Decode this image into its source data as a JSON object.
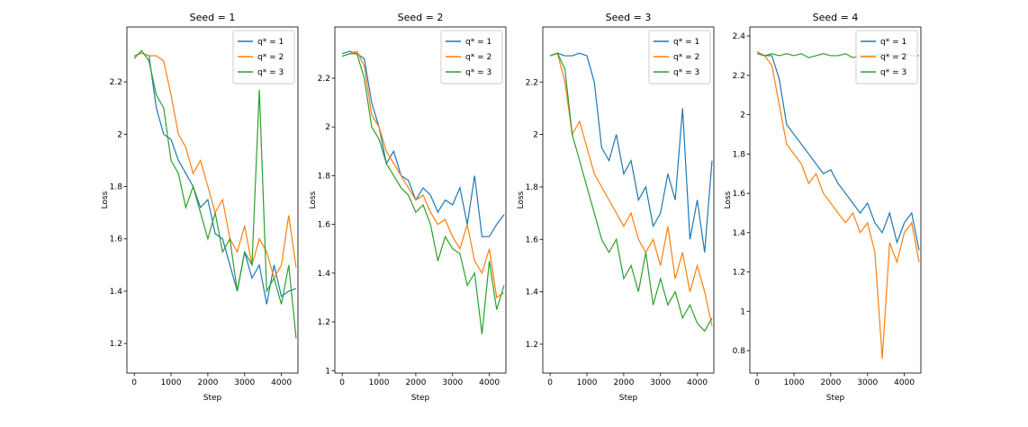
{
  "chart_data": [
    {
      "type": "line",
      "title": "Seed = 1",
      "xlabel": "Step",
      "ylabel": "Loss",
      "x": [
        0,
        200,
        400,
        600,
        800,
        1000,
        1200,
        1400,
        1600,
        1800,
        2000,
        2200,
        2400,
        2600,
        2800,
        3000,
        3200,
        3400,
        3600,
        3800,
        4000,
        4200,
        4400
      ],
      "xlim": [
        -200,
        4450
      ],
      "xticks": [
        0,
        1000,
        2000,
        3000,
        4000
      ],
      "ylim": [
        1.087,
        2.41
      ],
      "yticks": [
        1.2,
        1.4,
        1.6,
        1.8,
        2.0,
        2.2
      ],
      "legend": "upper right",
      "series": [
        {
          "name": "q* = 1",
          "color": "#1f77b4",
          "values": [
            2.3,
            2.31,
            2.3,
            2.1,
            2.0,
            1.98,
            1.9,
            1.85,
            1.8,
            1.72,
            1.75,
            1.62,
            1.6,
            1.5,
            1.4,
            1.55,
            1.45,
            1.5,
            1.35,
            1.5,
            1.38,
            1.4,
            1.41
          ]
        },
        {
          "name": "q* = 2",
          "color": "#ff7f0e",
          "values": [
            2.3,
            2.31,
            2.3,
            2.3,
            2.28,
            2.15,
            2.0,
            1.95,
            1.85,
            1.9,
            1.8,
            1.7,
            1.75,
            1.6,
            1.55,
            1.65,
            1.5,
            1.6,
            1.55,
            1.45,
            1.5,
            1.69,
            1.49
          ]
        },
        {
          "name": "q* = 3",
          "color": "#2ca02c",
          "values": [
            2.29,
            2.32,
            2.28,
            2.15,
            2.1,
            1.9,
            1.85,
            1.72,
            1.8,
            1.7,
            1.6,
            1.7,
            1.55,
            1.6,
            1.4,
            1.55,
            1.5,
            2.17,
            1.4,
            1.45,
            1.35,
            1.5,
            1.22
          ]
        }
      ]
    },
    {
      "type": "line",
      "title": "Seed = 2",
      "xlabel": "Step",
      "ylabel": "Loss",
      "x": [
        0,
        200,
        400,
        600,
        800,
        1000,
        1200,
        1400,
        1600,
        1800,
        2000,
        2200,
        2400,
        2600,
        2800,
        3000,
        3200,
        3400,
        3600,
        3800,
        4000,
        4200,
        4400
      ],
      "xlim": [
        -200,
        4450
      ],
      "xticks": [
        0,
        1000,
        2000,
        3000,
        4000
      ],
      "ylim": [
        0.99,
        2.41
      ],
      "yticks": [
        1.0,
        1.2,
        1.4,
        1.6,
        1.8,
        2.0,
        2.2
      ],
      "legend": "upper right",
      "series": [
        {
          "name": "q* = 1",
          "color": "#1f77b4",
          "values": [
            2.3,
            2.31,
            2.3,
            2.28,
            2.1,
            2.0,
            1.85,
            1.9,
            1.8,
            1.78,
            1.7,
            1.75,
            1.72,
            1.65,
            1.7,
            1.68,
            1.75,
            1.6,
            1.8,
            1.55,
            1.55,
            1.6,
            1.64
          ]
        },
        {
          "name": "q* = 2",
          "color": "#ff7f0e",
          "values": [
            2.29,
            2.3,
            2.31,
            2.25,
            2.05,
            2.0,
            1.9,
            1.85,
            1.8,
            1.75,
            1.7,
            1.72,
            1.65,
            1.6,
            1.62,
            1.55,
            1.5,
            1.6,
            1.45,
            1.4,
            1.5,
            1.3,
            1.32
          ]
        },
        {
          "name": "q* = 3",
          "color": "#2ca02c",
          "values": [
            2.29,
            2.3,
            2.3,
            2.2,
            2.0,
            1.95,
            1.85,
            1.8,
            1.75,
            1.72,
            1.65,
            1.68,
            1.6,
            1.45,
            1.55,
            1.5,
            1.48,
            1.35,
            1.4,
            1.15,
            1.45,
            1.25,
            1.35
          ]
        }
      ]
    },
    {
      "type": "line",
      "title": "Seed = 3",
      "xlabel": "Step",
      "ylabel": "Loss",
      "x": [
        0,
        200,
        400,
        600,
        800,
        1000,
        1200,
        1400,
        1600,
        1800,
        2000,
        2200,
        2400,
        2600,
        2800,
        3000,
        3200,
        3400,
        3600,
        3800,
        4000,
        4200,
        4400
      ],
      "xlim": [
        -200,
        4450
      ],
      "xticks": [
        0,
        1000,
        2000,
        3000,
        4000
      ],
      "ylim": [
        1.09,
        2.41
      ],
      "yticks": [
        1.2,
        1.4,
        1.6,
        1.8,
        2.0,
        2.2
      ],
      "legend": "upper right",
      "series": [
        {
          "name": "q* = 1",
          "color": "#1f77b4",
          "values": [
            2.3,
            2.31,
            2.3,
            2.3,
            2.31,
            2.3,
            2.2,
            1.95,
            1.9,
            2.0,
            1.85,
            1.9,
            1.75,
            1.8,
            1.65,
            1.7,
            1.85,
            1.75,
            2.1,
            1.6,
            1.75,
            1.55,
            1.9
          ]
        },
        {
          "name": "q* = 2",
          "color": "#ff7f0e",
          "values": [
            2.3,
            2.31,
            2.2,
            2.0,
            2.05,
            1.95,
            1.85,
            1.8,
            1.75,
            1.7,
            1.65,
            1.7,
            1.6,
            1.55,
            1.6,
            1.5,
            1.65,
            1.45,
            1.55,
            1.4,
            1.5,
            1.4,
            1.27
          ]
        },
        {
          "name": "q* = 3",
          "color": "#2ca02c",
          "values": [
            2.3,
            2.31,
            2.25,
            2.0,
            1.9,
            1.8,
            1.7,
            1.6,
            1.55,
            1.6,
            1.45,
            1.5,
            1.4,
            1.55,
            1.35,
            1.45,
            1.35,
            1.4,
            1.3,
            1.35,
            1.28,
            1.25,
            1.3
          ]
        }
      ]
    },
    {
      "type": "line",
      "title": "Seed = 4",
      "xlabel": "Step",
      "ylabel": "Loss",
      "x": [
        0,
        200,
        400,
        600,
        800,
        1000,
        1200,
        1400,
        1600,
        1800,
        2000,
        2200,
        2400,
        2600,
        2800,
        3000,
        3200,
        3400,
        3600,
        3800,
        4000,
        4200,
        4400
      ],
      "xlim": [
        -200,
        4450
      ],
      "xticks": [
        0,
        1000,
        2000,
        3000,
        4000
      ],
      "ylim": [
        0.686,
        2.446
      ],
      "yticks": [
        0.8,
        1.0,
        1.2,
        1.4,
        1.6,
        1.8,
        2.0,
        2.2,
        2.4
      ],
      "legend": "upper right",
      "series": [
        {
          "name": "q* = 1",
          "color": "#1f77b4",
          "values": [
            2.32,
            2.3,
            2.3,
            2.18,
            1.95,
            1.9,
            1.85,
            1.8,
            1.75,
            1.7,
            1.72,
            1.65,
            1.6,
            1.55,
            1.5,
            1.55,
            1.45,
            1.4,
            1.5,
            1.35,
            1.45,
            1.5,
            1.31
          ]
        },
        {
          "name": "q* = 2",
          "color": "#ff7f0e",
          "values": [
            2.32,
            2.3,
            2.25,
            2.05,
            1.85,
            1.8,
            1.75,
            1.65,
            1.7,
            1.6,
            1.55,
            1.5,
            1.45,
            1.5,
            1.4,
            1.45,
            1.3,
            0.76,
            1.35,
            1.25,
            1.4,
            1.45,
            1.25
          ]
        },
        {
          "name": "q* = 3",
          "color": "#2ca02c",
          "values": [
            2.31,
            2.3,
            2.31,
            2.3,
            2.31,
            2.3,
            2.31,
            2.29,
            2.3,
            2.31,
            2.3,
            2.3,
            2.31,
            2.29,
            2.3,
            2.3,
            2.3,
            2.31,
            2.3,
            2.3,
            2.31,
            2.3,
            2.3
          ]
        }
      ]
    }
  ]
}
